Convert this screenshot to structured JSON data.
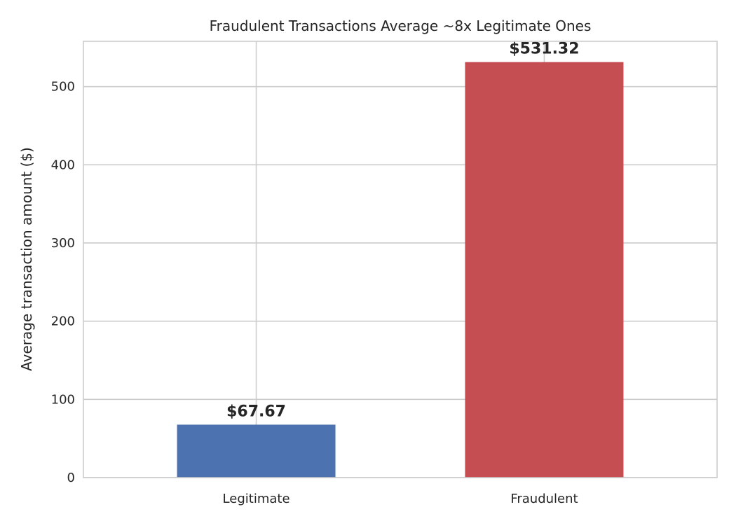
{
  "chart_data": {
    "type": "bar",
    "title": "Fraudulent Transactions Average ~8x Legitimate Ones",
    "xlabel": "",
    "ylabel": "Average transaction amount ($)",
    "categories": [
      "Legitimate",
      "Fraudulent"
    ],
    "values": [
      67.67,
      531.32
    ],
    "data_labels": [
      "$67.67",
      "$531.32"
    ],
    "colors": [
      "#4c72b0",
      "#c44e52"
    ],
    "ylim": [
      0,
      557.886
    ],
    "yticks": [
      0,
      100,
      200,
      300,
      400,
      500
    ],
    "grid": true,
    "legend": "none"
  }
}
